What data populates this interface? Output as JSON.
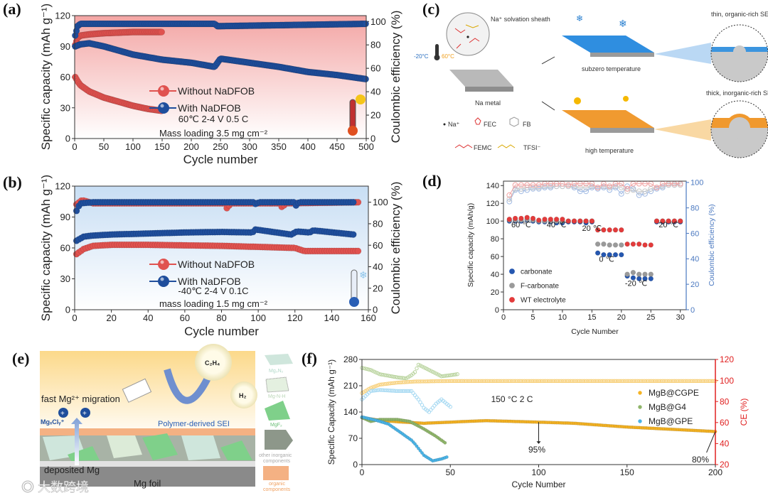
{
  "panel_labels": [
    "(a)",
    "(b)",
    "(c)",
    "(d)",
    "(e)",
    "(f)"
  ],
  "chart_data": [
    {
      "panel": "a",
      "type": "scatter",
      "xlabel": "Cycle number",
      "ylabel": "Specific capacity (mAh g⁻¹)",
      "y2label": "Coulombic efficiency (%)",
      "xlim": [
        0,
        500
      ],
      "ylim": [
        0,
        120
      ],
      "y2lim": [
        0,
        105
      ],
      "xticks": [
        "0",
        "50",
        "100",
        "150",
        "200",
        "250",
        "300",
        "350",
        "400",
        "450",
        "500"
      ],
      "yticks": [
        "0",
        "30",
        "60",
        "90",
        "120"
      ],
      "y2ticks": [
        "0",
        "20",
        "40",
        "60",
        "80",
        "100"
      ],
      "background": "#f3a5a4",
      "series": [
        {
          "name": "Without NaDFOB",
          "kind": "capacity",
          "axis": "left",
          "color": "#e0524f",
          "x": [
            1,
            5,
            10,
            25,
            50,
            75,
            100,
            125,
            150
          ],
          "y": [
            60,
            56,
            52,
            46,
            40,
            36,
            32,
            29,
            27
          ]
        },
        {
          "name": "Without NaDFOB",
          "kind": "ce",
          "axis": "right",
          "color": "#e0524f",
          "x": [
            1,
            5,
            10,
            25,
            50,
            75,
            100,
            150
          ],
          "y": [
            80,
            86,
            88,
            89,
            90,
            90.5,
            91,
            91
          ]
        },
        {
          "name": "With NaDFOB",
          "kind": "capacity",
          "axis": "left",
          "color": "#1f4e9c",
          "x": [
            1,
            10,
            25,
            50,
            75,
            100,
            150,
            200,
            240,
            250,
            300,
            350,
            400,
            450,
            500
          ],
          "y": [
            90,
            92,
            93,
            90,
            86,
            82,
            77,
            74,
            70,
            78,
            74,
            70,
            65,
            62,
            58
          ]
        },
        {
          "name": "With NaDFOB",
          "kind": "ce",
          "axis": "right",
          "color": "#1f4e9c",
          "x": [
            1,
            5,
            10,
            240,
            245,
            500
          ],
          "y": [
            88,
            96,
            98,
            98,
            96,
            98
          ]
        }
      ],
      "legend": [
        "Without NaDFOB",
        "With NaDFOB"
      ],
      "annotations": [
        "60℃ 2-4 V 0.5 C",
        "Mass loading 3.5 mg cm⁻²"
      ]
    },
    {
      "panel": "b",
      "type": "scatter",
      "xlabel": "Cycle number",
      "ylabel": "Specific capacity (mAh g⁻¹)",
      "y2label": "Coulombic efficiency (%)",
      "xlim": [
        0,
        160
      ],
      "ylim": [
        0,
        120
      ],
      "y2lim": [
        0,
        115
      ],
      "xticks": [
        "0",
        "20",
        "40",
        "60",
        "80",
        "100",
        "120",
        "140",
        "160"
      ],
      "yticks": [
        "0",
        "30",
        "60",
        "90",
        "120"
      ],
      "y2ticks": [
        "0",
        "20",
        "40",
        "60",
        "80",
        "100"
      ],
      "background": "#cfe2f5",
      "series": [
        {
          "name": "Without NaDFOB",
          "kind": "capacity",
          "axis": "left",
          "color": "#e0524f",
          "x": [
            1,
            5,
            10,
            20,
            40,
            60,
            80,
            100,
            120,
            125,
            140,
            155
          ],
          "y": [
            54,
            59,
            62,
            63,
            63,
            62.5,
            62,
            61,
            60,
            57,
            57,
            57
          ]
        },
        {
          "name": "Without NaDFOB",
          "kind": "ce",
          "axis": "right",
          "color": "#e0524f",
          "x": [
            1,
            4,
            10,
            50,
            82,
            83,
            85,
            112,
            113,
            115,
            155
          ],
          "y": [
            98,
            102,
            99,
            99,
            99,
            94,
            99,
            99,
            95,
            99,
            100
          ]
        },
        {
          "name": "With NaDFOB",
          "kind": "capacity",
          "axis": "left",
          "color": "#1f4e9c",
          "x": [
            1,
            5,
            10,
            20,
            40,
            60,
            80,
            97,
            98,
            118,
            121,
            128,
            130,
            152
          ],
          "y": [
            67,
            71,
            72,
            73,
            74,
            75,
            75.5,
            75,
            78,
            73,
            76,
            75,
            77,
            73
          ]
        },
        {
          "name": "With NaDFOB",
          "kind": "ce",
          "axis": "right",
          "color": "#1f4e9c",
          "x": [
            1,
            3,
            10,
            98,
            99,
            100,
            120,
            121,
            122,
            152
          ],
          "y": [
            92,
            99,
            100,
            100,
            97,
            100,
            100,
            95,
            100,
            100
          ]
        }
      ],
      "legend": [
        "Without NaDFOB",
        "With NaDFOB"
      ],
      "annotations": [
        "-40℃ 2-4 V 0.1C",
        "mass loading 1.5 mg cm⁻²"
      ]
    },
    {
      "panel": "d",
      "type": "scatter",
      "xlabel": "Cycle Number",
      "ylabel": "Specific capacity (mAh/g)",
      "y2label": "Coulombic efficiency (%)",
      "xlim": [
        0,
        31
      ],
      "ylim": [
        0,
        145
      ],
      "y2lim": [
        0,
        101
      ],
      "xticks": [
        "0",
        "5",
        "10",
        "15",
        "20",
        "25",
        "30"
      ],
      "yticks": [
        "0",
        "20",
        "40",
        "60",
        "80",
        "100",
        "120",
        "140"
      ],
      "y2ticks": [
        "0",
        "20",
        "40",
        "60",
        "80",
        "100"
      ],
      "x": [
        1,
        2,
        3,
        4,
        5,
        6,
        7,
        8,
        9,
        10,
        11,
        12,
        13,
        14,
        15,
        16,
        17,
        18,
        19,
        20,
        21,
        22,
        23,
        24,
        25,
        26,
        27,
        28,
        29,
        30
      ],
      "series": [
        {
          "name": "carbonate",
          "kind": "capacity",
          "color": "#2557b0",
          "y": [
            100,
            100,
            100,
            101,
            100,
            99,
            99,
            99,
            98,
            98,
            99,
            99,
            99,
            98,
            99,
            64,
            62,
            62,
            62,
            62,
            38,
            36,
            35,
            35,
            35,
            99,
            99,
            99,
            99,
            99
          ]
        },
        {
          "name": "F-carbonate",
          "kind": "capacity",
          "color": "#9a9a9a",
          "y": [
            101,
            101,
            101,
            102,
            101,
            100,
            100,
            100,
            100,
            100,
            100,
            100,
            100,
            100,
            100,
            74,
            74,
            73,
            73,
            73,
            40,
            42,
            40,
            40,
            40,
            100,
            100,
            100,
            100,
            100
          ]
        },
        {
          "name": "WT electrolyte",
          "kind": "capacity",
          "color": "#e33b3b",
          "y": [
            102,
            103,
            103,
            104,
            103,
            101,
            102,
            102,
            102,
            102,
            100,
            100,
            100,
            100,
            100,
            90,
            90,
            90,
            90,
            90,
            74,
            74,
            74,
            73,
            73,
            100,
            100,
            100,
            100,
            100
          ]
        },
        {
          "name": "carbonate CE",
          "kind": "ce",
          "color": "#9fb9e3",
          "y": [
            85,
            94,
            93,
            94,
            95,
            95,
            96,
            96,
            97,
            97,
            97,
            96,
            93,
            93,
            96,
            95,
            96,
            94,
            96,
            91,
            97,
            95,
            90,
            91,
            93,
            95,
            96,
            98,
            98,
            99
          ]
        },
        {
          "name": "F-carbonate CE",
          "kind": "ce",
          "color": "#c9c9c9",
          "y": [
            87,
            95,
            95,
            96,
            96,
            96,
            97,
            97,
            97,
            97,
            97,
            97,
            96,
            96,
            97,
            96,
            97,
            96,
            97,
            96,
            93,
            94,
            93,
            93,
            95,
            96,
            97,
            98,
            98,
            98
          ]
        },
        {
          "name": "WT electrolyte CE",
          "kind": "ce",
          "color": "#f2a2a2",
          "y": [
            90,
            98,
            98,
            98,
            98,
            98,
            99,
            99,
            99,
            99,
            98,
            99,
            99,
            99,
            99,
            96,
            99,
            97,
            99,
            99,
            95,
            99,
            99,
            99,
            99,
            96,
            99,
            99,
            99,
            99
          ]
        }
      ],
      "legend": [
        "carbonate",
        "F-carbonate",
        "WT electrolyte"
      ],
      "temperature_labels": [
        "60 ℃",
        "40 ℃",
        "20 ℃",
        "0 ℃",
        "-20 ℃",
        "20 ℃"
      ]
    },
    {
      "panel": "f",
      "type": "scatter",
      "xlabel": "Cycle Number",
      "ylabel": "Specific Capacity (mAh g⁻¹)",
      "y2label": "CE (%)",
      "xlim": [
        0,
        200
      ],
      "ylim": [
        0,
        280
      ],
      "y2lim": [
        20,
        120
      ],
      "xticks": [
        "0",
        "50",
        "100",
        "150",
        "200"
      ],
      "yticks": [
        "0",
        "70",
        "140",
        "210",
        "280"
      ],
      "y2ticks": [
        "20",
        "40",
        "60",
        "80",
        "100",
        "120"
      ],
      "series": [
        {
          "name": "MgB@CGPE",
          "kind": "capacity",
          "axis": "left",
          "color": "#f5b323",
          "x": [
            0,
            10,
            20,
            35,
            50,
            70,
            100,
            120,
            150,
            175,
            200
          ],
          "y": [
            125,
            118,
            114,
            110,
            113,
            117,
            113,
            110,
            100,
            94,
            88
          ]
        },
        {
          "name": "MgB@CGPE",
          "kind": "ce",
          "axis": "right",
          "color": "#f7cf78",
          "x": [
            0,
            5,
            10,
            20,
            30,
            50,
            200
          ],
          "y": [
            88,
            93,
            96,
            98,
            99,
            99.5,
            99.5
          ]
        },
        {
          "name": "MgB@G4",
          "kind": "capacity",
          "axis": "left",
          "color": "#8fb56a",
          "x": [
            0,
            5,
            10,
            20,
            27,
            35,
            42,
            47
          ],
          "y": [
            125,
            115,
            120,
            120,
            115,
            95,
            75,
            58
          ]
        },
        {
          "name": "MgB@G4",
          "kind": "ce",
          "axis": "right",
          "color": "#b8d39d",
          "x": [
            0,
            5,
            10,
            20,
            25,
            28,
            30,
            32,
            38,
            45,
            50,
            54
          ],
          "y": [
            112,
            110,
            106,
            103,
            102,
            105,
            108,
            115,
            110,
            104,
            105,
            106
          ]
        },
        {
          "name": "MgB@GPE",
          "kind": "capacity",
          "axis": "left",
          "color": "#49b3e6",
          "x": [
            0,
            8,
            15,
            22,
            28,
            30,
            35,
            40,
            45,
            48
          ],
          "y": [
            127,
            118,
            108,
            85,
            65,
            55,
            25,
            10,
            15,
            20
          ]
        },
        {
          "name": "MgB@GPE",
          "kind": "ce",
          "axis": "right",
          "color": "#a6d9f2",
          "x": [
            0,
            5,
            10,
            20,
            28,
            32,
            35,
            38,
            42,
            45,
            50
          ],
          "y": [
            82,
            90,
            91,
            90,
            90,
            82,
            74,
            70,
            78,
            82,
            75
          ]
        }
      ],
      "legend": [
        "MgB@CGPE",
        "MgB@G4",
        "MgB@GPE"
      ],
      "annotations": [
        "150 °C 2 C",
        "95%",
        "80%"
      ]
    }
  ],
  "panel_c": {
    "solvation_label": "Na⁺ solvation sheath",
    "cold_temp": "-20°C",
    "hot_temp": "60°C",
    "metal_label": "Na metal",
    "subzero_label": "subzero temperature",
    "high_label": "high temperature",
    "thin_sei": "thin, organic-rich SEI",
    "thick_sei": "thick, inorganic-rich SEI",
    "legend": [
      "Na⁺",
      "FEC",
      "FB",
      "FEMC",
      "TFSI⁻"
    ]
  },
  "panel_e": {
    "migration": "fast Mg²⁺ migration",
    "cluster": "MgₓClᵧ⁺",
    "sei": "Polymer-derived SEI",
    "gas1": "C₂H₄",
    "gas2": "H₂",
    "deposited": "deposited Mg",
    "foil": "Mg foil",
    "legend": [
      "Mg₃N₂",
      "Mg-N-H",
      "MgF₂",
      "other inorganic",
      "components",
      "organic",
      "components"
    ],
    "watermark": "大数跨境"
  }
}
